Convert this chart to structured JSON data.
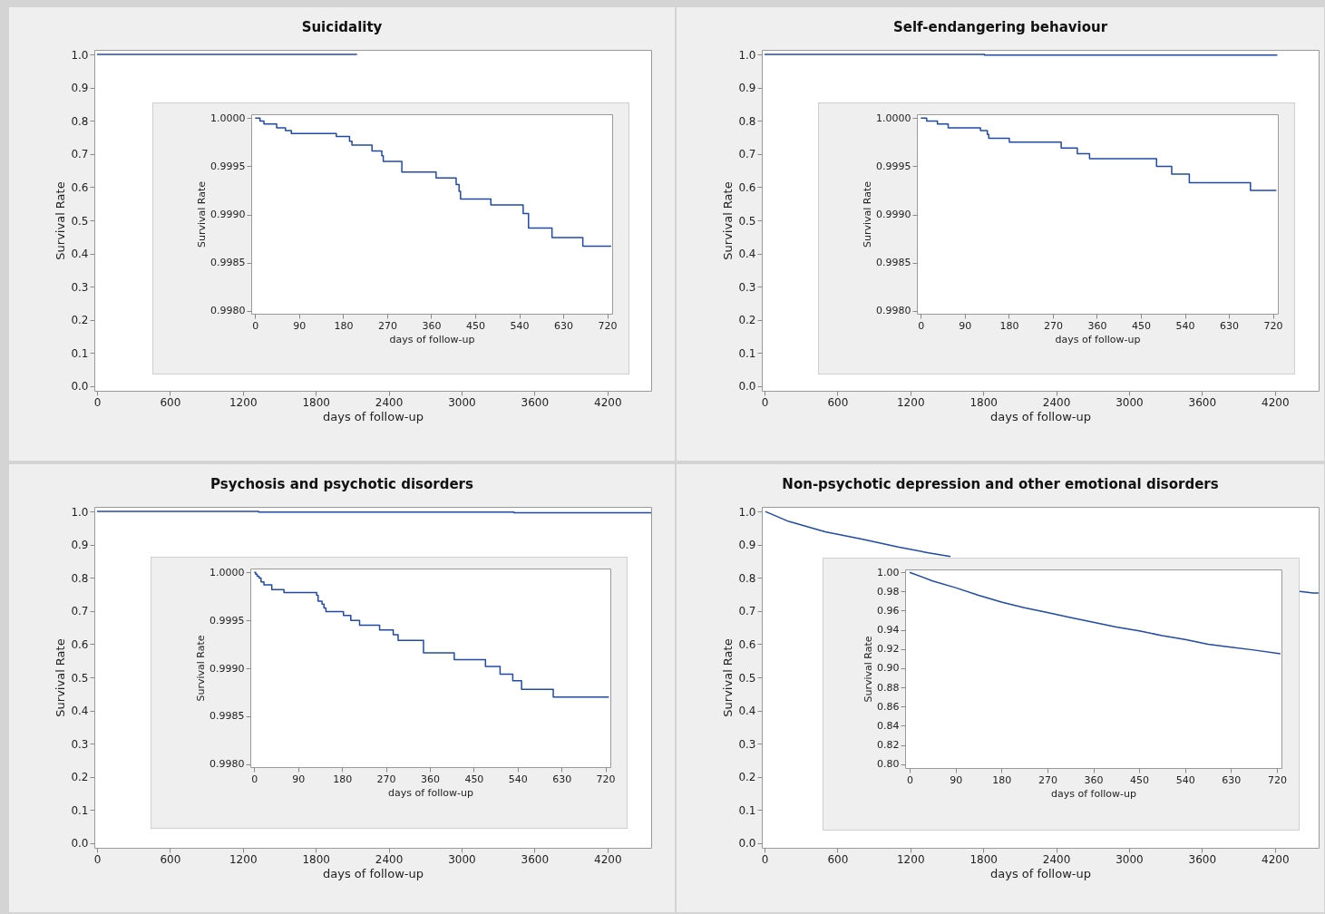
{
  "chart_data": [
    {
      "type": "step",
      "title": "Suicidality",
      "xlabel": "days of follow-up",
      "ylabel": "Survival Rate",
      "color": "#1f4aa8",
      "x": [
        0,
        2140
      ],
      "values": [
        1,
        1
      ],
      "xlim": [
        -22,
        4560
      ],
      "ylim": [
        -0.014,
        1.014
      ],
      "xticks": [
        0,
        600,
        1200,
        1800,
        2400,
        3000,
        3600,
        4200
      ],
      "yticks": [
        {
          "value": 0,
          "label": "0.0"
        },
        0.1,
        0.2,
        0.3,
        0.4,
        0.5,
        0.6,
        0.7,
        0.8,
        0.9,
        {
          "value": 1,
          "label": "1.0"
        }
      ]
    },
    {
      "type": "step",
      "xlabel": "days of follow-up",
      "ylabel": "Survival Rate",
      "color": "#1f4aa8",
      "x": [
        0,
        10,
        18,
        44,
        62,
        74,
        166,
        193,
        198,
        239,
        259,
        262,
        300,
        370,
        411,
        417,
        420,
        482,
        548,
        559,
        607,
        670,
        728
      ],
      "values": [
        1,
        0.99997,
        0.99994,
        0.9999,
        0.99987,
        0.99984,
        0.99981,
        0.99976,
        0.99972,
        0.99966,
        0.99961,
        0.99955,
        0.99944,
        0.99938,
        0.99931,
        0.99924,
        0.99916,
        0.9991,
        0.99901,
        0.99886,
        0.99876,
        0.99867,
        0.99867
      ],
      "xlim": [
        -8,
        730
      ],
      "ylim": [
        0.99797,
        1.00004
      ],
      "xticks": [
        0,
        90,
        180,
        270,
        360,
        450,
        540,
        630,
        720
      ],
      "yticks": [
        {
          "value": 0.998,
          "label": "0.9980"
        },
        {
          "value": 0.9985,
          "label": "0.9985"
        },
        {
          "value": 0.999,
          "label": "0.9990"
        },
        {
          "value": 0.9995,
          "label": "0.9995"
        },
        {
          "value": 1,
          "label": "1.0000"
        }
      ]
    },
    {
      "type": "step",
      "title": "Self-endangering behaviour",
      "xlabel": "days of follow-up",
      "ylabel": "Survival Rate",
      "color": "#1f4aa8",
      "x": [
        0,
        1810,
        4220
      ],
      "values": [
        1,
        0.998,
        0.998
      ],
      "xlim": [
        -22,
        4560
      ],
      "ylim": [
        -0.014,
        1.014
      ],
      "xticks": [
        0,
        600,
        1200,
        1800,
        2400,
        3000,
        3600,
        4200
      ],
      "yticks": [
        {
          "value": 0,
          "label": "0.0"
        },
        0.1,
        0.2,
        0.3,
        0.4,
        0.5,
        0.6,
        0.7,
        0.8,
        0.9,
        {
          "value": 1,
          "label": "1.0"
        }
      ]
    },
    {
      "type": "step",
      "xlabel": "days of follow-up",
      "ylabel": "Survival Rate",
      "color": "#1f4aa8",
      "x": [
        0,
        12,
        34,
        56,
        122,
        136,
        139,
        181,
        287,
        320,
        345,
        482,
        513,
        549,
        674,
        727
      ],
      "values": [
        1,
        0.99997,
        0.99994,
        0.9999,
        0.99987,
        0.99983,
        0.99979,
        0.99975,
        0.99969,
        0.99963,
        0.99958,
        0.9995,
        0.99942,
        0.99933,
        0.99925,
        0.99925
      ],
      "xlim": [
        -8,
        730
      ],
      "ylim": [
        0.99797,
        1.00004
      ],
      "xticks": [
        0,
        90,
        180,
        270,
        360,
        450,
        540,
        630,
        720
      ],
      "yticks": [
        {
          "value": 0.998,
          "label": "0.9980"
        },
        {
          "value": 0.9985,
          "label": "0.9985"
        },
        {
          "value": 0.999,
          "label": "0.9990"
        },
        {
          "value": 0.9995,
          "label": "0.9995"
        },
        {
          "value": 1,
          "label": "1.0000"
        }
      ]
    },
    {
      "type": "step",
      "title": "Psychosis and psychotic disorders",
      "xlabel": "days of follow-up",
      "ylabel": "Survival Rate",
      "color": "#1f4aa8",
      "x": [
        0,
        1330,
        3430,
        4560
      ],
      "values": [
        1,
        0.998,
        0.996,
        0.996
      ],
      "xlim": [
        -22,
        4560
      ],
      "ylim": [
        -0.014,
        1.014
      ],
      "xticks": [
        0,
        600,
        1200,
        1800,
        2400,
        3000,
        3600,
        4200
      ],
      "yticks": [
        {
          "value": 0,
          "label": "0.0"
        },
        0.1,
        0.2,
        0.3,
        0.4,
        0.5,
        0.6,
        0.7,
        0.8,
        0.9,
        {
          "value": 1,
          "label": "1.0"
        }
      ]
    },
    {
      "type": "step",
      "xlabel": "days of follow-up",
      "ylabel": "Survival Rate",
      "color": "#1f4aa8",
      "x": [
        0,
        3,
        6,
        10,
        14,
        20,
        36,
        61,
        128,
        131,
        139,
        143,
        147,
        183,
        198,
        216,
        257,
        285,
        295,
        347,
        410,
        474,
        504,
        530,
        548,
        613,
        727
      ],
      "values": [
        1,
        0.99998,
        0.99996,
        0.99994,
        0.9999,
        0.99987,
        0.99982,
        0.99979,
        0.99976,
        0.9997,
        0.99967,
        0.99963,
        0.99959,
        0.99955,
        0.9995,
        0.99945,
        0.9994,
        0.99935,
        0.99929,
        0.99916,
        0.99909,
        0.99902,
        0.99894,
        0.99887,
        0.99878,
        0.9987,
        0.9987
      ],
      "xlim": [
        -8,
        730
      ],
      "ylim": [
        0.99797,
        1.00004
      ],
      "xticks": [
        0,
        90,
        180,
        270,
        360,
        450,
        540,
        630,
        720
      ],
      "yticks": [
        {
          "value": 0.998,
          "label": "0.9980"
        },
        {
          "value": 0.9985,
          "label": "0.9985"
        },
        {
          "value": 0.999,
          "label": "0.9990"
        },
        {
          "value": 0.9995,
          "label": "0.9995"
        },
        {
          "value": 1,
          "label": "1.0000"
        }
      ]
    },
    {
      "type": "line",
      "title": "Non-psychotic depression and other emotional disorders",
      "xlabel": "days of follow-up",
      "ylabel": "Survival Rate",
      "color": "#1f4aa8",
      "x": [
        7,
        200,
        500,
        800,
        1100,
        1340,
        1530,
        1540,
        4390,
        4515,
        4559
      ],
      "values": [
        1,
        0.97,
        0.939,
        0.917,
        0.893,
        0.876,
        0.864,
        null,
        0.76,
        0.754,
        0.754
      ],
      "xlim": [
        -22,
        4560
      ],
      "ylim": [
        -0.014,
        1.014
      ],
      "xticks": [
        0,
        600,
        1200,
        1800,
        2400,
        3000,
        3600,
        4200
      ],
      "yticks": [
        {
          "value": 0,
          "label": "0.0"
        },
        0.1,
        0.2,
        0.3,
        0.4,
        0.5,
        0.6,
        0.7,
        0.8,
        0.9,
        {
          "value": 1,
          "label": "1.0"
        }
      ]
    },
    {
      "type": "line",
      "xlabel": "days of follow-up",
      "ylabel": "Survival Rate",
      "color": "#1f4aa8",
      "x": [
        0,
        45,
        90,
        135,
        180,
        225,
        270,
        315,
        360,
        405,
        450,
        495,
        540,
        585,
        630,
        675,
        727
      ],
      "values": [
        1,
        0.991,
        0.984,
        0.976,
        0.969,
        0.963,
        0.958,
        0.953,
        0.948,
        0.943,
        0.939,
        0.934,
        0.93,
        0.925,
        0.922,
        0.919,
        0.915
      ],
      "xlim": [
        -9,
        729
      ],
      "ylim": [
        0.796,
        1.003
      ],
      "xticks": [
        0,
        90,
        180,
        270,
        360,
        450,
        540,
        630,
        720
      ],
      "yticks": [
        {
          "value": 0.8,
          "label": "0.80"
        },
        0.82,
        0.84,
        0.86,
        0.88,
        {
          "value": 0.9,
          "label": "0.90"
        },
        0.92,
        0.94,
        0.96,
        0.98,
        {
          "value": 1,
          "label": "1.00"
        }
      ]
    }
  ]
}
